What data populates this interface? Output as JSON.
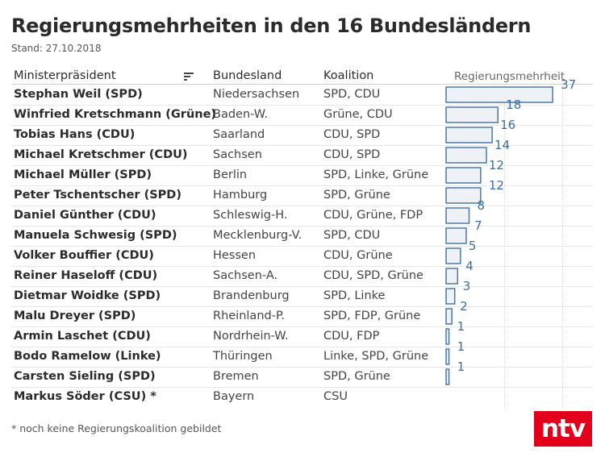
{
  "title": "Regierungsmehrheiten in den 16 Bundesländern",
  "subtitle": "Stand: 27.10.2018",
  "columns": {
    "ministerpraesident": "Ministerpräsident",
    "bundesland": "Bundesland",
    "koalition": "Koalition",
    "mehrheit": "Regierungsmehrheit"
  },
  "rows": [
    {
      "mp": "Stephan Weil (SPD)",
      "land": "Niedersachsen",
      "koalition": "SPD, CDU",
      "value_label": "37"
    },
    {
      "mp": "Winfried Kretschmann (Grüne)",
      "land": "Baden-W.",
      "koalition": "Grüne, CDU",
      "value_label": "18"
    },
    {
      "mp": "Tobias Hans (CDU)",
      "land": "Saarland",
      "koalition": "CDU, SPD",
      "value_label": "16"
    },
    {
      "mp": "Michael Kretschmer (CDU)",
      "land": "Sachsen",
      "koalition": "CDU, SPD",
      "value_label": "14"
    },
    {
      "mp": "Michael Müller (SPD)",
      "land": "Berlin",
      "koalition": "SPD, Linke, Grüne",
      "value_label": "12"
    },
    {
      "mp": "Peter Tschentscher (SPD)",
      "land": "Hamburg",
      "koalition": "SPD, Grüne",
      "value_label": "12"
    },
    {
      "mp": "Daniel Günther (CDU)",
      "land": "Schleswig-H.",
      "koalition": "CDU, Grüne, FDP",
      "value_label": "8"
    },
    {
      "mp": "Manuela Schwesig (SPD)",
      "land": "Mecklenburg-V.",
      "koalition": "SPD, CDU",
      "value_label": "7"
    },
    {
      "mp": "Volker Bouffier (CDU)",
      "land": "Hessen",
      "koalition": "CDU, Grüne",
      "value_label": "5"
    },
    {
      "mp": "Reiner Haseloff (CDU)",
      "land": "Sachsen-A.",
      "koalition": "CDU, SPD, Grüne",
      "value_label": "4"
    },
    {
      "mp": "Dietmar Woidke (SPD)",
      "land": "Brandenburg",
      "koalition": "SPD, Linke",
      "value_label": "3"
    },
    {
      "mp": "Malu Dreyer (SPD)",
      "land": "Rheinland-P.",
      "koalition": "SPD, FDP, Grüne",
      "value_label": "2"
    },
    {
      "mp": "Armin Laschet (CDU)",
      "land": "Nordrhein-W.",
      "koalition": "CDU, FDP",
      "value_label": "1"
    },
    {
      "mp": "Bodo Ramelow (Linke)",
      "land": "Thüringen",
      "koalition": "Linke, SPD, Grüne",
      "value_label": "1"
    },
    {
      "mp": "Carsten Sieling (SPD)",
      "land": "Bremen",
      "koalition": "SPD, Grüne",
      "value_label": "1"
    },
    {
      "mp": "Markus Söder (CSU) *",
      "land": "Bayern",
      "koalition": "CSU",
      "value_label": ""
    }
  ],
  "footnote": "* noch keine Regierungskoalition gebildet",
  "logo_text": "ntv",
  "colors": {
    "bar_fill": "#eef2f6",
    "bar_stroke": "#4a78a8",
    "label": "#3b6ea3",
    "brand": "#e3001b"
  },
  "chart_data": {
    "type": "bar",
    "orientation": "horizontal",
    "title": "Regierungsmehrheiten in den 16 Bundesländern",
    "categories": [
      "Niedersachsen",
      "Baden-W.",
      "Saarland",
      "Sachsen",
      "Berlin",
      "Hamburg",
      "Schleswig-H.",
      "Mecklenburg-V.",
      "Hessen",
      "Sachsen-A.",
      "Brandenburg",
      "Rheinland-P.",
      "Nordrhein-W.",
      "Thüringen",
      "Bremen",
      "Bayern"
    ],
    "values": [
      37,
      18,
      16,
      14,
      12,
      12,
      8,
      7,
      5,
      4,
      3,
      2,
      1,
      1,
      1,
      null
    ],
    "xlabel": "Regierungsmehrheit",
    "xlim": [
      0,
      40
    ],
    "grid": true
  }
}
